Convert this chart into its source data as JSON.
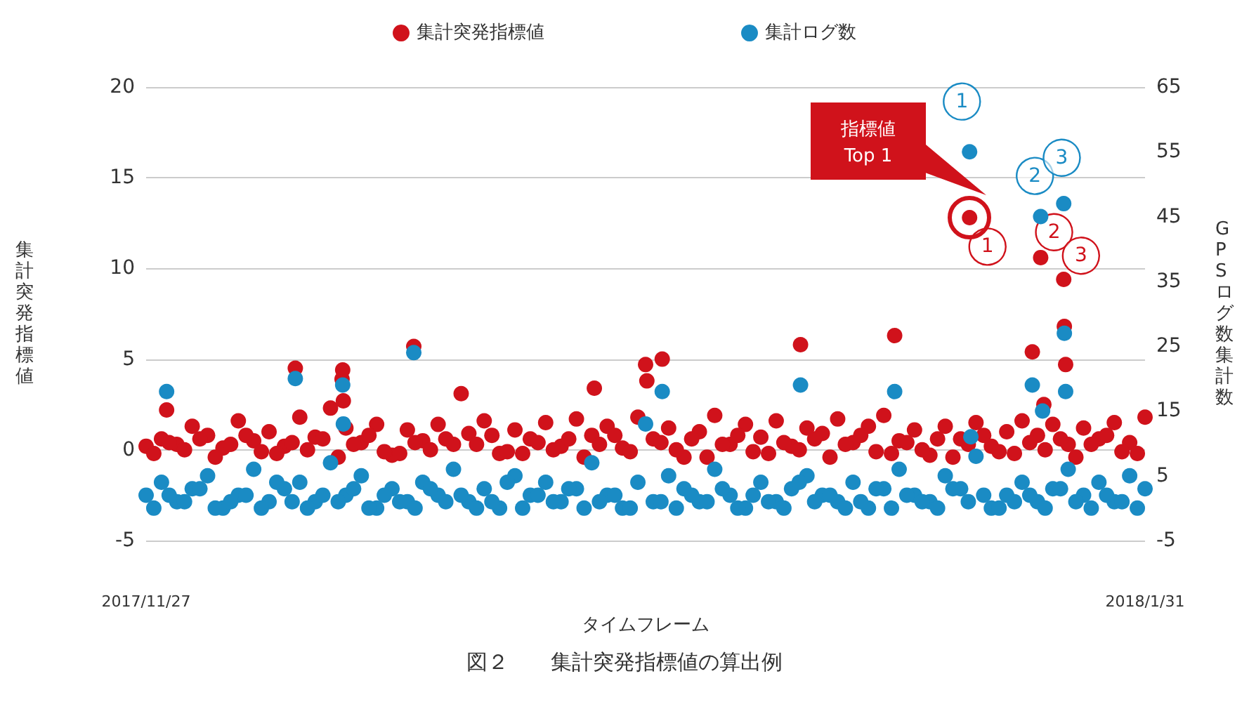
{
  "chart_data": {
    "type": "scatter",
    "title": "図２　　集計突発指標値の算出例",
    "xlabel": "タイムフレーム",
    "ylabel": "集計突発指標値",
    "y2label": "GPSログ数集計数",
    "x": [
      "2017-11-27",
      "2017-11-28",
      "2017-11-29",
      "2017-11-30",
      "2017-12-01",
      "2017-12-02",
      "2017-12-03",
      "2017-12-04",
      "2017-12-05",
      "2017-12-06",
      "2017-12-07",
      "2017-12-08",
      "2017-12-09",
      "2017-12-10",
      "2017-12-11",
      "2017-12-12",
      "2017-12-13",
      "2017-12-14",
      "2017-12-15",
      "2017-12-16",
      "2017-12-17",
      "2017-12-18",
      "2017-12-19",
      "2017-12-20",
      "2017-12-21",
      "2017-12-22",
      "2017-12-23",
      "2017-12-24",
      "2017-12-25",
      "2017-12-26",
      "2017-12-27",
      "2017-12-28",
      "2017-12-29",
      "2017-12-30",
      "2017-12-31",
      "2018-01-01",
      "2018-01-02",
      "2018-01-03",
      "2018-01-04",
      "2018-01-05",
      "2018-01-06",
      "2018-01-07",
      "2018-01-08",
      "2018-01-09",
      "2018-01-10",
      "2018-01-11",
      "2018-01-12",
      "2018-01-13",
      "2018-01-14",
      "2018-01-15",
      "2018-01-16",
      "2018-01-17",
      "2018-01-18",
      "2018-01-19",
      "2018-01-20",
      "2018-01-21",
      "2018-01-22",
      "2018-01-23",
      "2018-01-24",
      "2018-01-25",
      "2018-01-26",
      "2018-01-27",
      "2018-01-28",
      "2018-01-29",
      "2018-01-30",
      "2018-01-31",
      "2017-11-27T12:00",
      "2017-11-28T12:00",
      "2017-11-29T12:00",
      "2017-11-30T12:00",
      "2017-12-01T12:00",
      "2017-12-02T12:00",
      "2017-12-03T12:00",
      "2017-12-04T12:00",
      "2017-12-05T12:00",
      "2017-12-06T12:00",
      "2017-12-07T12:00",
      "2017-12-08T12:00",
      "2017-12-09T12:00",
      "2017-12-10T12:00",
      "2017-12-11T12:00",
      "2017-12-12T12:00",
      "2017-12-13T12:00",
      "2017-12-14T12:00",
      "2017-12-15T12:00",
      "2017-12-16T12:00",
      "2017-12-17T12:00",
      "2017-12-18T12:00",
      "2017-12-19T12:00",
      "2017-12-20T12:00",
      "2017-12-21T12:00",
      "2017-12-22T12:00",
      "2017-12-23T12:00",
      "2017-12-24T12:00",
      "2017-12-25T12:00",
      "2017-12-26T12:00",
      "2017-12-27T12:00",
      "2017-12-28T12:00",
      "2017-12-29T12:00",
      "2017-12-30T12:00",
      "2017-12-31T12:00",
      "2018-01-01T12:00",
      "2018-01-02T12:00",
      "2018-01-03T12:00",
      "2018-01-04T12:00",
      "2018-01-05T12:00",
      "2018-01-06T12:00",
      "2018-01-07T12:00",
      "2018-01-08T12:00",
      "2018-01-09T12:00",
      "2018-01-10T12:00",
      "2018-01-11T12:00",
      "2018-01-12T12:00",
      "2018-01-13T12:00",
      "2018-01-14T12:00",
      "2018-01-15T12:00",
      "2018-01-16T12:00",
      "2018-01-17T12:00",
      "2018-01-18T12:00",
      "2018-01-19T12:00",
      "2018-01-20T12:00",
      "2018-01-21T12:00",
      "2018-01-22T12:00",
      "2018-01-23T12:00",
      "2018-01-24T12:00",
      "2018-01-25T12:00",
      "2018-01-26T12:00",
      "2018-01-27T12:00",
      "2018-01-28T12:00",
      "2018-01-29T12:00",
      "2018-01-30T12:00",
      "2017-11-28T08:00",
      "2017-12-06T17:00",
      "2017-12-09T18:00",
      "2017-12-09T19:00",
      "2017-12-09T20:00",
      "2017-12-14T10:00",
      "2017-12-26T04:00",
      "2017-12-29T14:00",
      "2017-12-30T14:00",
      "2018-01-08T14:00",
      "2018-01-14T17:00",
      "2018-01-19T14:00",
      "2018-01-19T16:00",
      "2018-01-23T16:00",
      "2018-01-24T05:00",
      "2018-01-24T08:00",
      "2018-01-24T10:00",
      "2018-01-25T17:00",
      "2018-01-25T18:00",
      "2018-01-25T20:00"
    ],
    "series": [
      {
        "name": "集計突発指標値",
        "color": "#d0121b",
        "values": [
          0.2,
          0.6,
          0.3,
          1.3,
          0.8,
          0.1,
          1.6,
          0.5,
          1.0,
          0.2,
          1.8,
          0.7,
          2.3,
          1.2,
          0.4,
          1.4,
          -0.3,
          1.1,
          0.5,
          1.4,
          0.3,
          0.9,
          1.6,
          -0.2,
          1.1,
          0.6,
          1.5,
          0.2,
          1.7,
          0.8,
          1.3,
          0.1,
          1.8,
          0.6,
          1.2,
          -0.4,
          1.0,
          1.9,
          0.3,
          1.4,
          0.7,
          1.6,
          0.2,
          1.2,
          0.9,
          1.7,
          0.4,
          1.3,
          1.9,
          0.5,
          1.1,
          -0.3,
          1.3,
          0.6,
          1.5,
          0.2,
          1.0,
          1.6,
          0.8,
          1.4,
          0.3,
          1.2,
          0.6,
          1.5,
          0.4,
          1.8,
          -0.2,
          0.4,
          0.0,
          0.6,
          -0.4,
          0.3,
          0.8,
          -0.1,
          -0.2,
          0.4,
          0.0,
          0.6,
          -0.4,
          0.3,
          0.8,
          -0.1,
          -0.2,
          0.4,
          0.0,
          0.6,
          3.1,
          0.3,
          0.8,
          -0.1,
          -0.2,
          0.4,
          0.0,
          0.6,
          -0.4,
          0.3,
          0.8,
          -0.1,
          4.7,
          0.4,
          0.0,
          0.6,
          -0.4,
          0.3,
          0.8,
          -0.1,
          -0.2,
          0.4,
          0.0,
          0.6,
          -0.4,
          0.3,
          0.8,
          -0.1,
          -0.2,
          0.4,
          0.0,
          0.6,
          -0.4,
          0.3,
          0.8,
          -0.1,
          -0.2,
          0.4,
          0.0,
          0.6,
          -0.4,
          0.3,
          0.8,
          -0.1,
          -0.2,
          2.2,
          4.5,
          3.9,
          4.4,
          2.7,
          5.7,
          3.4,
          3.8,
          5.0,
          5.8,
          6.3,
          12.8,
          null,
          5.4,
          10.6,
          null,
          2.5,
          9.4,
          6.8,
          4.7
        ]
      },
      {
        "name": "集計ログ数",
        "color": "#1a8bc4",
        "axis": "y2",
        "values": [
          2,
          4,
          1,
          3,
          5,
          0,
          2,
          6,
          1,
          3,
          4,
          1,
          7,
          2,
          5,
          0,
          3,
          1,
          4,
          2,
          6,
          1,
          3,
          0,
          5,
          2,
          4,
          1,
          3,
          7,
          2,
          0,
          4,
          1,
          5,
          3,
          1,
          6,
          2,
          0,
          4,
          1,
          3,
          5,
          2,
          1,
          4,
          0,
          3,
          6,
          2,
          1,
          5,
          3,
          8,
          0,
          2,
          4,
          1,
          3,
          6,
          2,
          4,
          1,
          5,
          3,
          0,
          2,
          1,
          3,
          0,
          1,
          2,
          0,
          4,
          1,
          0,
          2,
          1,
          3,
          0,
          2,
          1,
          0,
          3,
          1,
          2,
          0,
          1,
          4,
          0,
          2,
          1,
          3,
          0,
          1,
          2,
          0,
          13,
          1,
          0,
          2,
          1,
          3,
          0,
          2,
          1,
          0,
          4,
          1,
          2,
          0,
          1,
          3,
          0,
          2,
          1,
          0,
          3,
          1,
          2,
          0,
          1,
          2,
          0,
          3,
          1,
          0,
          2,
          1,
          0,
          18,
          20,
          null,
          19,
          13,
          24,
          null,
          null,
          18,
          19,
          18,
          55,
          11,
          19,
          45,
          15,
          null,
          47,
          27,
          18
        ]
      }
    ],
    "xlim": [
      "2017-11-27",
      "2018-01-31"
    ],
    "xticks": [
      {
        "value": "2017-11-27",
        "label": "2017/11/27"
      },
      {
        "value": "2018-01-31",
        "label": "2018/1/31"
      }
    ],
    "ylim": [
      -5,
      20
    ],
    "yticks": [
      -5,
      0,
      5,
      10,
      15,
      20
    ],
    "y2lim": [
      -5,
      65
    ],
    "y2ticks": [
      -5,
      5,
      15,
      25,
      35,
      45,
      55,
      65
    ],
    "annotations": [
      "指標値\nTop 1",
      {
        "text": "1",
        "x": "2018-01-20T18:00",
        "y": 11.2
      },
      {
        "text": "2",
        "x": "2018-01-25T02:00",
        "y": 12.0
      },
      {
        "text": "3",
        "x": "2018-01-26T20:00",
        "y": 10.7
      },
      {
        "text": "1",
        "x": "2018-01-19T02:00",
        "y": 19.2
      },
      {
        "text": "2",
        "x": "2018-01-23T20:00",
        "y": 15.1
      },
      {
        "text": "3",
        "x": "2018-01-25T14:00",
        "y": 16.1
      }
    ],
    "grid": "y",
    "legend": "top",
    "marker": "circle"
  }
}
